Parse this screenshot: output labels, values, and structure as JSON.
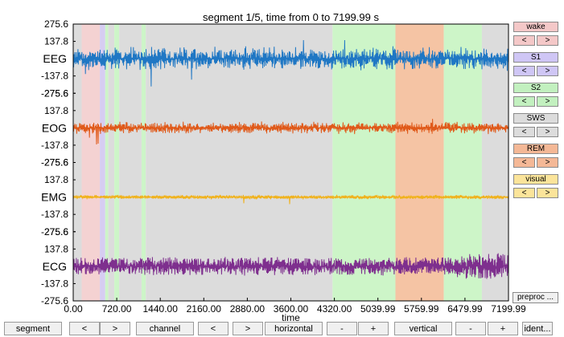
{
  "title": "segment 1/5, time from 0 to 7199.99 s",
  "xlabel": "time",
  "x_ticks": [
    "0.00",
    "720.00",
    "1440.00",
    "2160.00",
    "2880.00",
    "3600.00",
    "4320.00",
    "5039.99",
    "5759.99",
    "6479.99",
    "7199.99"
  ],
  "x_range": [
    0,
    7199.99
  ],
  "channels": [
    {
      "name": "EEG",
      "color": "#1f77c4",
      "ticks": [
        "275.6",
        "137.8",
        "",
        "-137.8",
        "-275.6"
      ]
    },
    {
      "name": "EOG",
      "color": "#e05a1a",
      "ticks": [
        "275.6",
        "137.8",
        "",
        "-137.8",
        "-275.6"
      ]
    },
    {
      "name": "EMG",
      "color": "#f0b21c",
      "ticks": [
        "275.6",
        "137.8",
        "",
        "-137.8",
        "-275.6"
      ]
    },
    {
      "name": "ECG",
      "color": "#7e2f8e",
      "ticks": [
        "275.6",
        "137.8",
        "",
        "-137.8",
        "-275.6"
      ]
    }
  ],
  "hypnogram_bands": [
    {
      "stage": "wake",
      "start": 0,
      "end": 140,
      "color": "#dcdcdc"
    },
    {
      "stage": "wake",
      "start": 140,
      "end": 440,
      "color": "#f4d2d2"
    },
    {
      "stage": "S1",
      "start": 440,
      "end": 530,
      "color": "#d6cdf2"
    },
    {
      "stage": "S2",
      "start": 530,
      "end": 580,
      "color": "#cdf5c8"
    },
    {
      "stage": "SWS",
      "start": 580,
      "end": 680,
      "color": "#dcdcdc"
    },
    {
      "stage": "S2",
      "start": 680,
      "end": 760,
      "color": "#cdf5c8"
    },
    {
      "stage": "SWS",
      "start": 760,
      "end": 1130,
      "color": "#dcdcdc"
    },
    {
      "stage": "S2",
      "start": 1130,
      "end": 1200,
      "color": "#cdf5c8"
    },
    {
      "stage": "SWS",
      "start": 1200,
      "end": 4290,
      "color": "#dcdcdc"
    },
    {
      "stage": "S2",
      "start": 4290,
      "end": 5330,
      "color": "#cdf5c8"
    },
    {
      "stage": "REM",
      "start": 5330,
      "end": 6130,
      "color": "#f5c4a4"
    },
    {
      "stage": "S2",
      "start": 6130,
      "end": 6760,
      "color": "#cdf5c8"
    },
    {
      "stage": "SWS",
      "start": 6760,
      "end": 7199.99,
      "color": "#dcdcdc"
    }
  ],
  "stages": [
    {
      "label": "wake",
      "color": "#f4c8c8",
      "btn_color": "#f4c8c8"
    },
    {
      "label": "S1",
      "color": "#cfc6f5",
      "btn_color": "#cfc6f5"
    },
    {
      "label": "S2",
      "color": "#c2f0bf",
      "btn_color": "#c2f0bf"
    },
    {
      "label": "SWS",
      "color": "#dcdcdc",
      "btn_color": "#dcdcdc"
    },
    {
      "label": "REM",
      "color": "#f4b896",
      "btn_color": "#f4b896"
    },
    {
      "label": "visual",
      "color": "#fbe49a",
      "btn_color": "#fbe49a"
    }
  ],
  "stage_prev_label": "<",
  "stage_next_label": ">",
  "preproc_label": "preproc ...",
  "bottom": {
    "segment": "segment",
    "seg_prev": "<",
    "seg_next": ">",
    "channel": "channel",
    "ch_prev": "<",
    "ch_next": ">",
    "horizontal": "horizontal",
    "h_minus": "-",
    "h_plus": "+",
    "vertical": "vertical",
    "v_minus": "-",
    "v_plus": "+",
    "ident": "ident..."
  }
}
